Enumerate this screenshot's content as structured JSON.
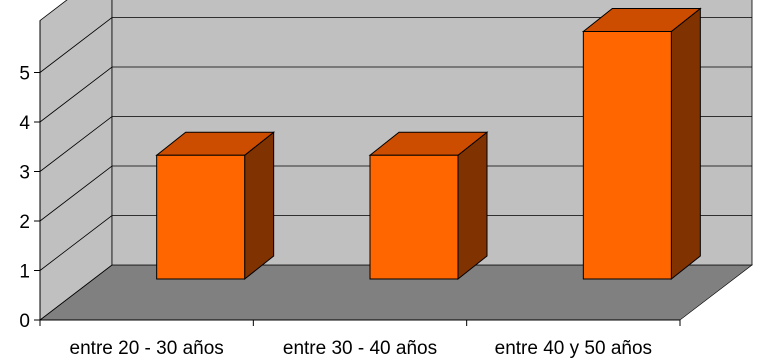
{
  "chart_data": {
    "type": "bar",
    "style": "3d-column",
    "categories": [
      "entre 20 - 30 años",
      "entre 30 - 40 años",
      "entre 40 y 50 años"
    ],
    "values": [
      2.5,
      2.5,
      5
    ],
    "title": "",
    "xlabel": "",
    "ylabel": "",
    "ylim": [
      0,
      5
    ],
    "yticks": [
      0,
      1,
      2,
      3,
      4,
      5
    ],
    "grid": true,
    "legend": "none",
    "colors": {
      "bar_front": "#FF6600",
      "bar_top": "#CC4C00",
      "bar_side": "#803300",
      "back_wall": "#C0C0C0",
      "side_wall": "#C0C0C0",
      "floor": "#808080",
      "gridline": "#000000"
    }
  }
}
